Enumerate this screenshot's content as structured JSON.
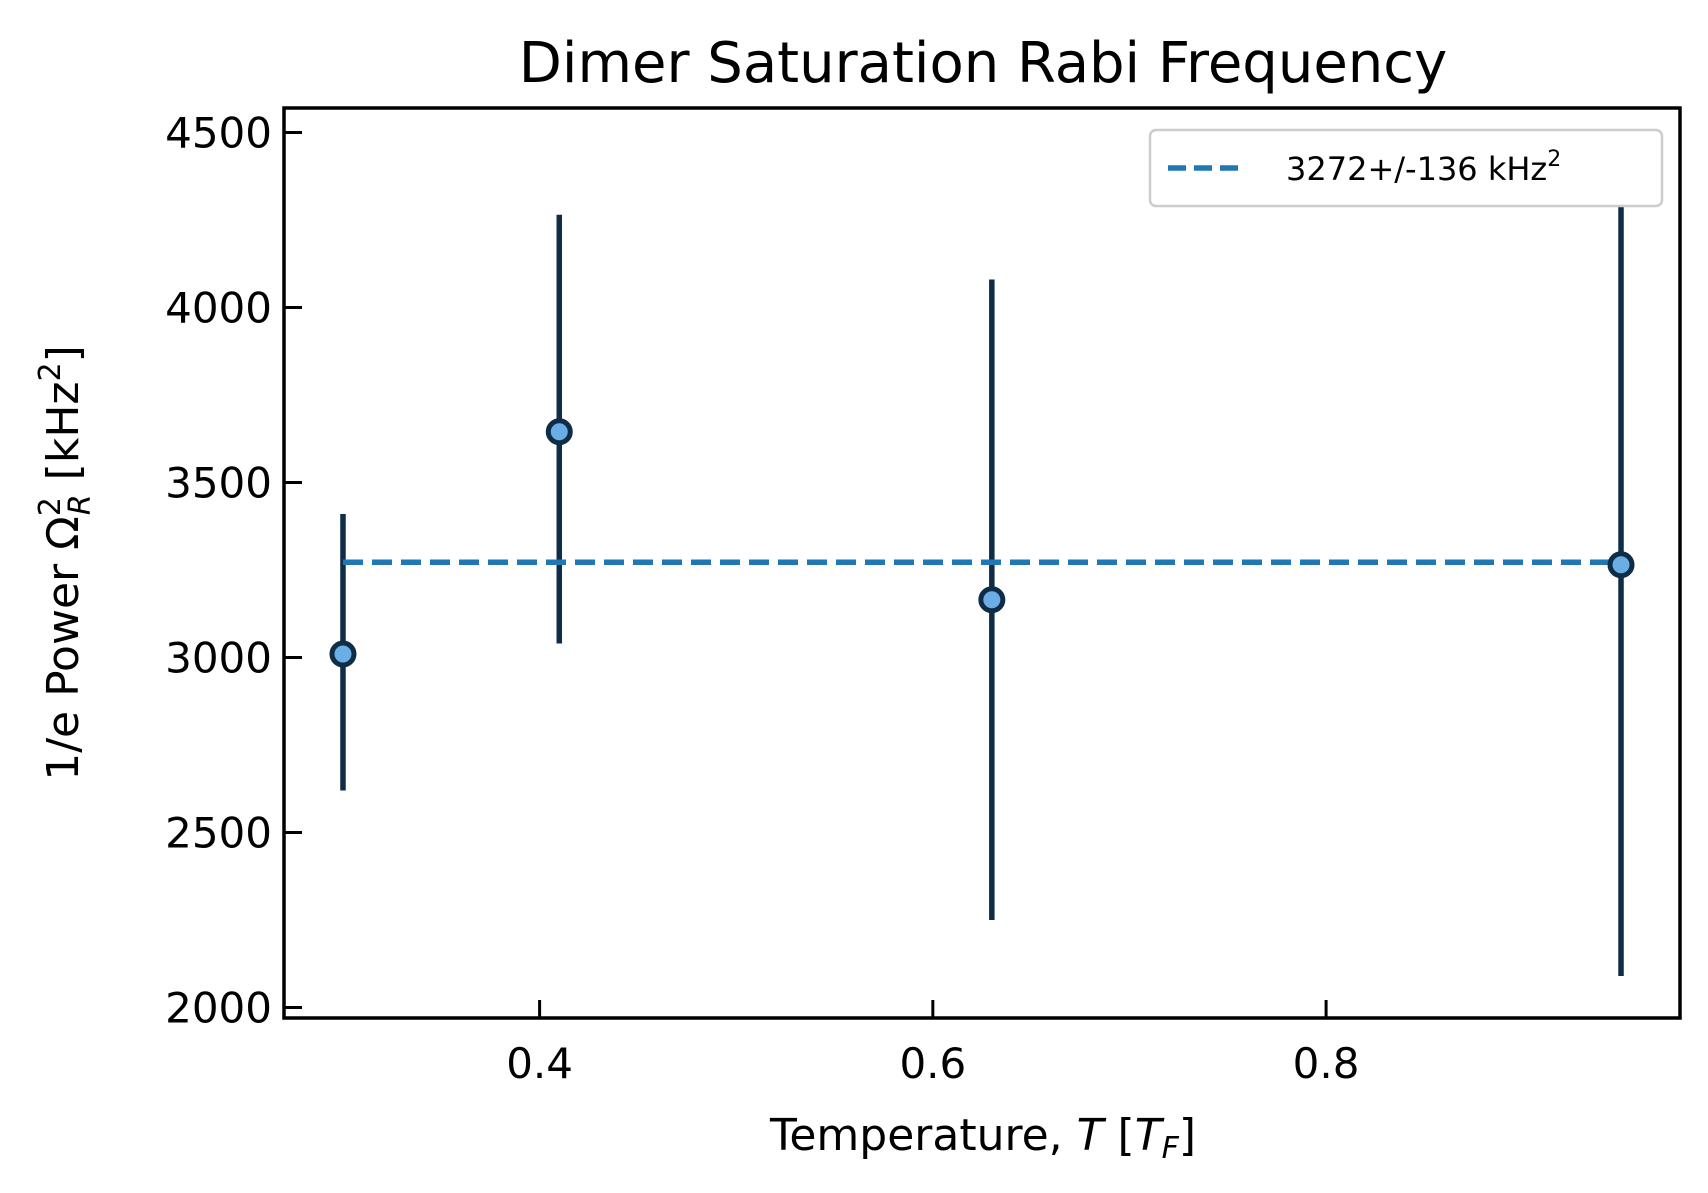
{
  "chart_data": {
    "type": "scatter",
    "title": "Dimer Saturation Rabi Frequency",
    "xlabel": "Temperature, T [T_F]",
    "ylabel": "1/e Power Ω_R^2 [kHz^2]",
    "xlim": [
      0.27,
      0.98
    ],
    "ylim": [
      1970,
      4570
    ],
    "xticks": [
      0.4,
      0.6,
      0.8
    ],
    "xtick_labels": [
      "0.4",
      "0.6",
      "0.8"
    ],
    "yticks": [
      2000,
      2500,
      3000,
      3500,
      4000,
      4500
    ],
    "ytick_labels": [
      "2000",
      "2500",
      "3000",
      "3500",
      "4000",
      "4500"
    ],
    "grid": false,
    "legend_position": "top-right",
    "series": [
      {
        "type": "errorbar",
        "x": [
          0.3,
          0.41,
          0.63,
          0.95
        ],
        "y": [
          3010,
          3645,
          3165,
          3265
        ],
        "yerr_low": [
          2620,
          3040,
          2250,
          2090
        ],
        "yerr_high": [
          3410,
          4265,
          4080,
          4440
        ]
      },
      {
        "name": "3272+/-136 kHz²",
        "type": "hline",
        "y": 3272,
        "x_range": [
          0.3,
          0.95
        ],
        "style": "dashed"
      }
    ],
    "colors": {
      "marker_edge": "#0f2d47",
      "marker_face": "#6aaee5",
      "errorbar": "#0f2d47",
      "fit_line": "#1f77b4",
      "axes": "#000000"
    }
  },
  "labels": {
    "title": "Dimer Saturation Rabi Frequency",
    "xlabel_prefix": "Temperature, ",
    "xlabel_var": "T",
    "xlabel_open": " [",
    "xlabel_sub_base": "T",
    "xlabel_sub": "F",
    "xlabel_close": "]",
    "ylabel_prefix": "1/e Power ",
    "ylabel_omega": "Ω",
    "ylabel_sup": "2",
    "ylabel_sub": "R",
    "ylabel_unit_open": " [kHz",
    "ylabel_unit_sup": "2",
    "ylabel_unit_close": "]",
    "legend_text": "3272+/-136 kHz",
    "legend_sup": "2"
  }
}
